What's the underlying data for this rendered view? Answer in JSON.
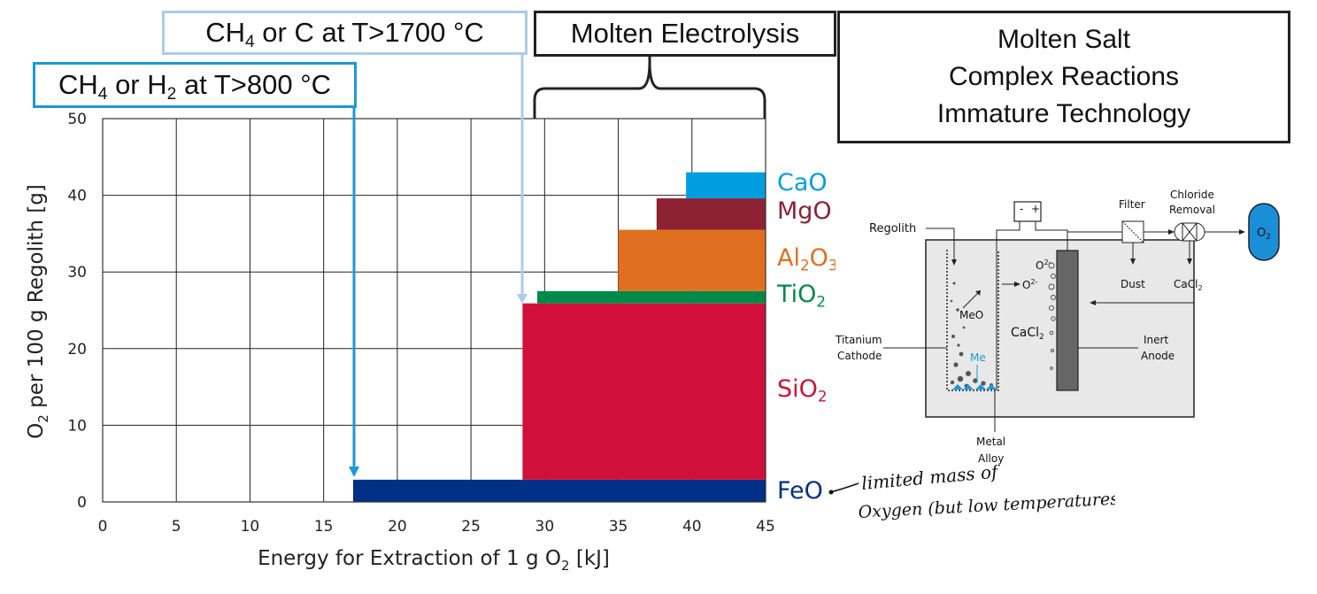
{
  "callouts": {
    "ch4_c": {
      "pre": "CH",
      "sub": "4",
      "post": " or C at T>1700 °C"
    },
    "molten_electrolysis": "Molten Electrolysis",
    "ch4_h2": {
      "pre": "CH",
      "sub4": "4",
      "mid": " or H",
      "sub2": "2",
      "post": " at T>800 °C"
    },
    "molten_salt": [
      "Molten Salt",
      "Complex Reactions",
      "Immature Technology"
    ]
  },
  "chart_data": {
    "type": "bar",
    "title": "",
    "xlabel": {
      "pre": "Energy for Extraction of 1 g O",
      "sub": "2",
      "post": " [kJ]"
    },
    "ylabel": {
      "pre": "O",
      "sub": "2",
      "post": " per 100 g Regolith [g]"
    },
    "xlim": [
      0,
      45
    ],
    "ylim": [
      0,
      50
    ],
    "xticks": [
      0,
      5,
      10,
      15,
      20,
      25,
      30,
      35,
      40,
      45
    ],
    "yticks": [
      0,
      10,
      20,
      30,
      40,
      50
    ],
    "grid": true,
    "series": [
      {
        "name": "FeO",
        "x_start": 17,
        "x_end": 45,
        "y_bottom": 0,
        "y_top": 2.9,
        "color": "#003087"
      },
      {
        "name": "SiO2",
        "x_start": 28.5,
        "x_end": 45,
        "y_bottom": 2.9,
        "y_top": 25.9,
        "color": "#d0103a"
      },
      {
        "name": "TiO2",
        "x_start": 29.5,
        "x_end": 45,
        "y_bottom": 25.9,
        "y_top": 27.5,
        "color": "#008a4a"
      },
      {
        "name": "Al2O3",
        "x_start": 35,
        "x_end": 45,
        "y_bottom": 27.5,
        "y_top": 35.5,
        "color": "#e07020"
      },
      {
        "name": "MgO",
        "x_start": 37.6,
        "x_end": 45,
        "y_bottom": 35.5,
        "y_top": 39.6,
        "color": "#8c2233"
      },
      {
        "name": "CaO",
        "x_start": 39.6,
        "x_end": 45,
        "y_bottom": 39.6,
        "y_top": 43.0,
        "color": "#009ee0"
      }
    ]
  },
  "oxide_labels": {
    "cao": "CaO",
    "mgo": "MgO",
    "al2o3": {
      "pre": "Al",
      "sub1": "2",
      "mid": "O",
      "sub2": "3"
    },
    "tio2": {
      "pre": "TiO",
      "sub": "2"
    },
    "sio2": {
      "pre": "SiO",
      "sub": "2"
    },
    "feo": "FeO"
  },
  "handwritten_note": [
    "limited mass of",
    "Oxygen (but low temperatures)"
  ],
  "diagram": {
    "regolith": "Regolith",
    "filter": "Filter",
    "chloride_removal": [
      "Chloride",
      "Removal"
    ],
    "o2_pre": "O",
    "o2_sub": "2",
    "dust": "Dust",
    "cacl2_out": {
      "pre": "CaCl",
      "sub": "2"
    },
    "o2_minus_1": {
      "pre": "O",
      "sup": "2-"
    },
    "o2_minus_2": {
      "pre": "O",
      "sup": "2-"
    },
    "meo": "MeO",
    "cacl2_bath": {
      "pre": "CaCl",
      "sub": "2"
    },
    "me": "Me",
    "titanium_cathode": [
      "Titanium",
      "Cathode"
    ],
    "inert_anode": [
      "Inert",
      "Anode"
    ],
    "metal_alloy": [
      "Metal",
      "Alloy"
    ],
    "minus": "-",
    "plus": "+"
  },
  "colors": {
    "ch4_h2_box": "#1b9ad6",
    "ch4_c_box": "#a9cce9",
    "o2_capsule": "#1b8ed8",
    "me_blue": "#1b9ad6"
  }
}
